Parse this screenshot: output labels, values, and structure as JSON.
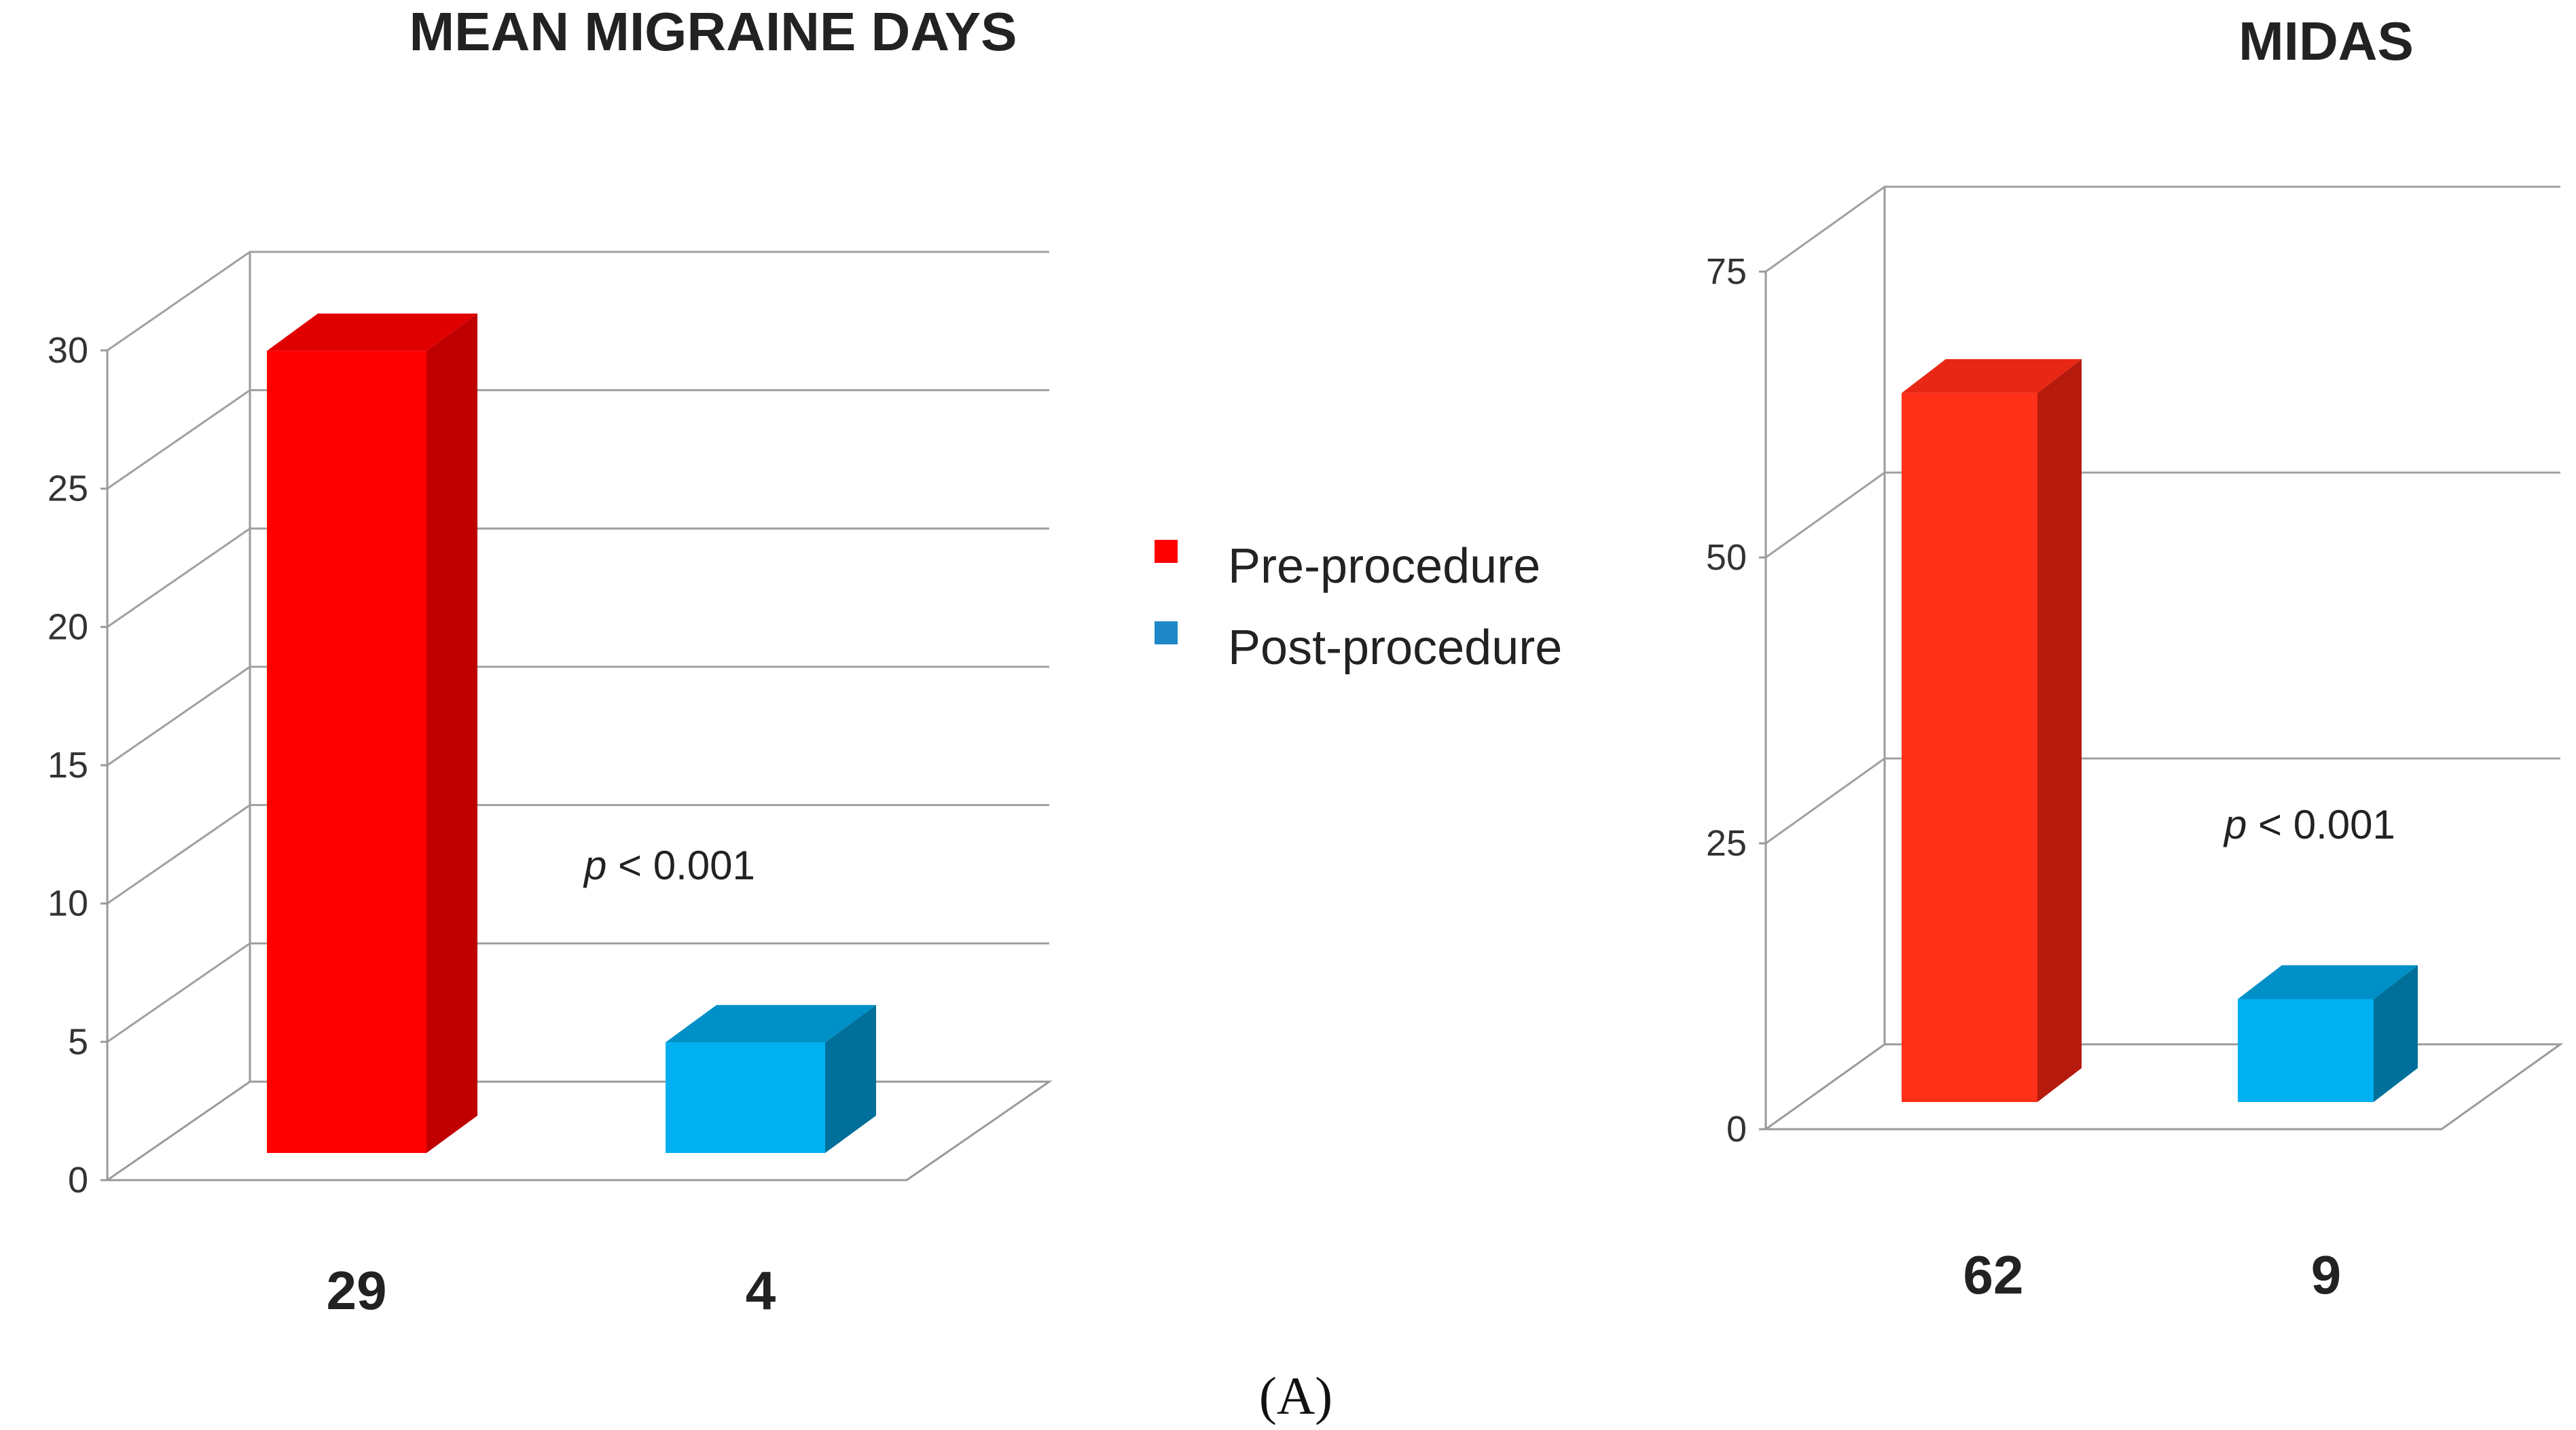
{
  "caption": "(A)",
  "legend": [
    {
      "label": "Pre-procedure",
      "color": "#ff0000"
    },
    {
      "label": "Post-procedure",
      "color": "#1e88c8"
    }
  ],
  "chart_data": [
    {
      "type": "bar",
      "title": "MEAN MIGRAINE DAYS",
      "categories": [
        "Pre-procedure",
        "Post-procedure"
      ],
      "values": [
        29,
        4
      ],
      "data_labels": [
        "29",
        "4"
      ],
      "yticks": [
        "0",
        "5",
        "10",
        "15",
        "20",
        "25",
        "30"
      ],
      "ylim": [
        0,
        30
      ],
      "annotation": {
        "italic": "p",
        "text": " < 0.001"
      },
      "grid": true,
      "three_d": true,
      "colors": {
        "pre_front": "#ff0000",
        "pre_side": "#c00000",
        "pre_top": "#e00000",
        "post_front": "#00b0f0",
        "post_side": "#00709a",
        "post_top": "#0090c8"
      }
    },
    {
      "type": "bar",
      "title": "MIDAS",
      "categories": [
        "Pre-procedure",
        "Post-procedure"
      ],
      "values": [
        62,
        9
      ],
      "data_labels": [
        "62",
        "9"
      ],
      "yticks": [
        "0",
        "25",
        "50",
        "75"
      ],
      "ylim": [
        0,
        75
      ],
      "annotation": {
        "italic": "p",
        "text": " < 0.001"
      },
      "grid": true,
      "three_d": true,
      "colors": {
        "pre_front": "#ff3018",
        "pre_side": "#b51a0c",
        "pre_top": "#e82814",
        "post_front": "#00b0f0",
        "post_side": "#00709a",
        "post_top": "#0090c8"
      }
    }
  ]
}
